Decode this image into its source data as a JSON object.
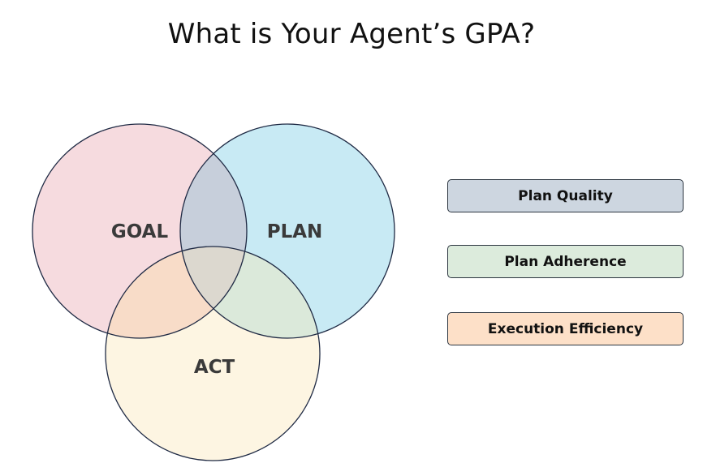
{
  "title": "What is Your Agent’s GPA?",
  "venn": {
    "circles": [
      {
        "label": "GOAL",
        "color": "#f6dbdf"
      },
      {
        "label": "PLAN",
        "color": "#c8eaf4"
      },
      {
        "label": "ACT",
        "color": "#fdf5e2"
      }
    ],
    "overlap_colors": {
      "goal_plan": "#c7cfdb",
      "goal_act": "#f8dcc8",
      "plan_act": "#dbe9da",
      "all": "#dcd8cf"
    },
    "stroke_color": "#1f2a44"
  },
  "legend": [
    {
      "label": "Plan Quality",
      "color": "#cdd6e0"
    },
    {
      "label": "Plan Adherence",
      "color": "#dcebdc"
    },
    {
      "label": "Execution Efficiency",
      "color": "#fde0c8"
    }
  ]
}
